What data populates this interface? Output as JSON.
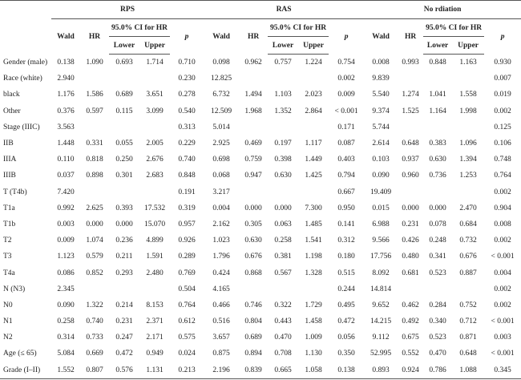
{
  "header": {
    "groups": [
      "RPS",
      "RAS",
      "No rdiation"
    ],
    "columns": [
      "Wald",
      "HR",
      "95.0% CI for HR",
      "p"
    ],
    "ci": [
      "Lower",
      "Upper"
    ]
  },
  "table": {
    "rows": [
      {
        "label": "Gender (male)",
        "values": [
          "0.138",
          "1.090",
          "0.693",
          "1.714",
          "0.710",
          "0.098",
          "0.962",
          "0.757",
          "1.224",
          "0.754",
          "0.008",
          "0.993",
          "0.848",
          "1.163",
          "0.930"
        ]
      },
      {
        "label": "Race (white)",
        "values": [
          "2.940",
          null,
          null,
          null,
          "0.230",
          "12.825",
          null,
          null,
          null,
          "0.002",
          "9.839",
          null,
          null,
          null,
          "0.007"
        ]
      },
      {
        "label": "black",
        "values": [
          "1.176",
          "1.586",
          "0.689",
          "3.651",
          "0.278",
          "6.732",
          "1.494",
          "1.103",
          "2.023",
          "0.009",
          "5.540",
          "1.274",
          "1.041",
          "1.558",
          "0.019"
        ]
      },
      {
        "label": "Other",
        "values": [
          "0.376",
          "0.597",
          "0.115",
          "3.099",
          "0.540",
          "12.509",
          "1.968",
          "1.352",
          "2.864",
          "< 0.001",
          "9.374",
          "1.525",
          "1.164",
          "1.998",
          "0.002"
        ]
      },
      {
        "label": "Stage (IIIC)",
        "values": [
          "3.563",
          null,
          null,
          null,
          "0.313",
          "5.014",
          null,
          null,
          null,
          "0.171",
          "5.744",
          null,
          null,
          null,
          "0.125"
        ]
      },
      {
        "label": "IIB",
        "values": [
          "1.448",
          "0.331",
          "0.055",
          "2.005",
          "0.229",
          "2.925",
          "0.469",
          "0.197",
          "1.117",
          "0.087",
          "2.614",
          "0.648",
          "0.383",
          "1.096",
          "0.106"
        ]
      },
      {
        "label": "IIIA",
        "values": [
          "0.110",
          "0.818",
          "0.250",
          "2.676",
          "0.740",
          "0.698",
          "0.759",
          "0.398",
          "1.449",
          "0.403",
          "0.103",
          "0.937",
          "0.630",
          "1.394",
          "0.748"
        ]
      },
      {
        "label": "IIIB",
        "values": [
          "0.037",
          "0.898",
          "0.301",
          "2.683",
          "0.848",
          "0.068",
          "0.947",
          "0.630",
          "1.425",
          "0.794",
          "0.090",
          "0.960",
          "0.736",
          "1.253",
          "0.764"
        ]
      },
      {
        "label": "T (T4b)",
        "values": [
          "7.420",
          null,
          null,
          null,
          "0.191",
          "3.217",
          null,
          null,
          null,
          "0.667",
          "19.409",
          null,
          null,
          null,
          "0.002"
        ]
      },
      {
        "label": "T1a",
        "values": [
          "0.992",
          "2.625",
          "0.393",
          "17.532",
          "0.319",
          "0.004",
          "0.000",
          "0.000",
          "7.300",
          "0.950",
          "0.015",
          "0.000",
          "0.000",
          "2.470",
          "0.904"
        ]
      },
      {
        "label": "T1b",
        "values": [
          "0.003",
          "0.000",
          "0.000",
          "15.070",
          "0.957",
          "2.162",
          "0.305",
          "0.063",
          "1.485",
          "0.141",
          "6.988",
          "0.231",
          "0.078",
          "0.684",
          "0.008"
        ]
      },
      {
        "label": "T2",
        "values": [
          "0.009",
          "1.074",
          "0.236",
          "4.899",
          "0.926",
          "1.023",
          "0.630",
          "0.258",
          "1.541",
          "0.312",
          "9.566",
          "0.426",
          "0.248",
          "0.732",
          "0.002"
        ]
      },
      {
        "label": "T3",
        "values": [
          "1.123",
          "0.579",
          "0.211",
          "1.591",
          "0.289",
          "1.796",
          "0.676",
          "0.381",
          "1.198",
          "0.180",
          "17.756",
          "0.480",
          "0.341",
          "0.676",
          "< 0.001"
        ]
      },
      {
        "label": "T4a",
        "values": [
          "0.086",
          "0.852",
          "0.293",
          "2.480",
          "0.769",
          "0.424",
          "0.868",
          "0.567",
          "1.328",
          "0.515",
          "8.092",
          "0.681",
          "0.523",
          "0.887",
          "0.004"
        ]
      },
      {
        "label": "N (N3)",
        "values": [
          "2.345",
          null,
          null,
          null,
          "0.504",
          "4.165",
          null,
          null,
          null,
          "0.244",
          "14.814",
          null,
          null,
          null,
          "0.002"
        ]
      },
      {
        "label": "N0",
        "values": [
          "0.090",
          "1.322",
          "0.214",
          "8.153",
          "0.764",
          "0.466",
          "0.746",
          "0.322",
          "1.729",
          "0.495",
          "9.652",
          "0.462",
          "0.284",
          "0.752",
          "0.002"
        ]
      },
      {
        "label": "N1",
        "values": [
          "0.258",
          "0.740",
          "0.231",
          "2.371",
          "0.612",
          "0.516",
          "0.804",
          "0.443",
          "1.458",
          "0.472",
          "14.215",
          "0.492",
          "0.340",
          "0.712",
          "< 0.001"
        ]
      },
      {
        "label": "N2",
        "values": [
          "0.314",
          "0.733",
          "0.247",
          "2.171",
          "0.575",
          "3.657",
          "0.689",
          "0.470",
          "1.009",
          "0.056",
          "9.112",
          "0.675",
          "0.523",
          "0.871",
          "0.003"
        ]
      },
      {
        "label": "Age (≤ 65)",
        "values": [
          "5.084",
          "0.669",
          "0.472",
          "0.949",
          "0.024",
          "0.875",
          "0.894",
          "0.708",
          "1.130",
          "0.350",
          "52.995",
          "0.552",
          "0.470",
          "0.648",
          "< 0.001"
        ]
      },
      {
        "label": "Grade (I–II)",
        "values": [
          "1.552",
          "0.807",
          "0.576",
          "1.131",
          "0.213",
          "2.196",
          "0.839",
          "0.665",
          "1.058",
          "0.138",
          "0.893",
          "0.924",
          "0.786",
          "1.088",
          "0.345"
        ]
      }
    ]
  }
}
